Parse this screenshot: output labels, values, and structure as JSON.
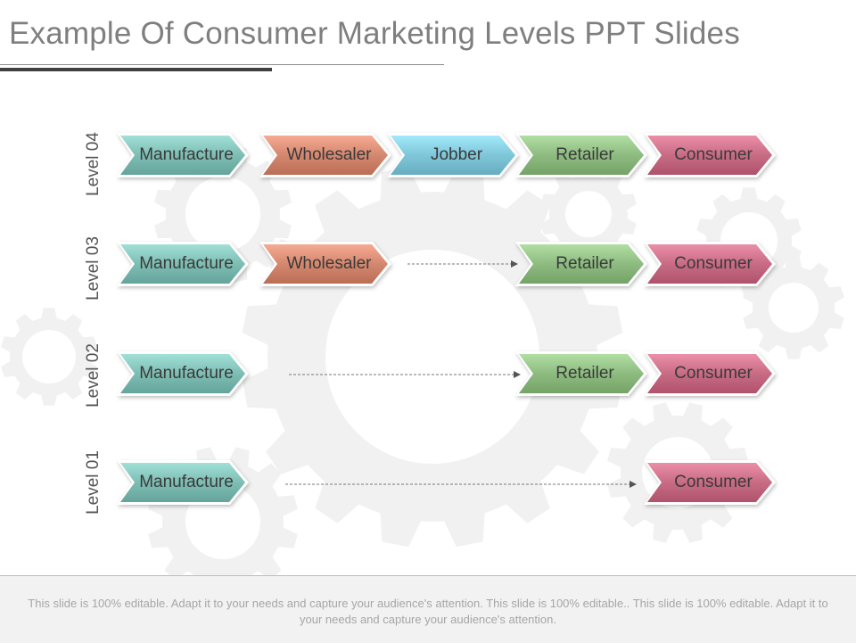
{
  "title": "Example Of Consumer Marketing Levels PPT Slides",
  "colors": {
    "manufacture": "#7dbdb3",
    "wholesaler": "#d4876f",
    "jobber": "#7fc6d9",
    "retailer": "#8dbb80",
    "consumer": "#c86b84",
    "gear": "#f1f1f1"
  },
  "levels": [
    {
      "label": "Level 04",
      "stages": [
        "Manufacture",
        "Wholesaler",
        "Jobber",
        "Retailer",
        "Consumer"
      ]
    },
    {
      "label": "Level 03",
      "stages": [
        "Manufacture",
        "Wholesaler",
        "Retailer",
        "Consumer"
      ]
    },
    {
      "label": "Level 02",
      "stages": [
        "Manufacture",
        "Retailer",
        "Consumer"
      ]
    },
    {
      "label": "Level 01",
      "stages": [
        "Manufacture",
        "Consumer"
      ]
    }
  ],
  "footer": "This slide is 100% editable. Adapt it to your needs and capture your audience's attention. This slide is 100% editable.. This slide is 100% editable. Adapt it to your needs and capture your audience's attention."
}
